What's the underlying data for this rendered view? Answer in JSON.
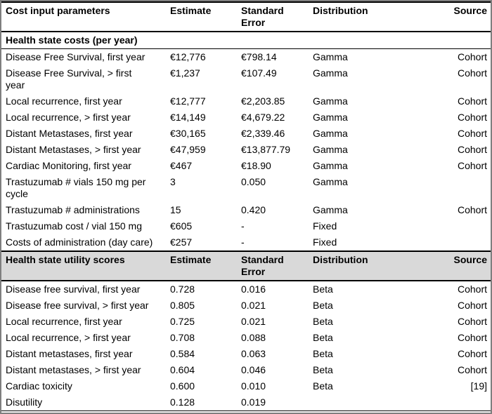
{
  "colors": {
    "frame_border": "#7f7f7f",
    "rule_color": "#000000",
    "header_shade": "#d9d9d9",
    "text": "#000000",
    "background": "#ffffff"
  },
  "table": {
    "sections": [
      {
        "type": "header",
        "shaded": false,
        "cells": [
          "Cost input parameters",
          "Estimate",
          "Standard\nError",
          "Distribution",
          "Source"
        ]
      },
      {
        "type": "subheader",
        "label": "Health state costs (per year)"
      },
      {
        "type": "rows",
        "rows": [
          [
            "Disease Free Survival, first year",
            "€12,776",
            "€798.14",
            "Gamma",
            "Cohort"
          ],
          [
            "Disease Free Survival, > first\nyear",
            "€1,237",
            "€107.49",
            "Gamma",
            "Cohort"
          ],
          [
            "Local recurrence, first year",
            "€12,777",
            "€2,203.85",
            "Gamma",
            "Cohort"
          ],
          [
            "Local recurrence, > first year",
            "€14,149",
            "€4,679.22",
            "Gamma",
            "Cohort"
          ],
          [
            "Distant Metastases, first year",
            "€30,165",
            "€2,339.46",
            "Gamma",
            "Cohort"
          ],
          [
            "Distant Metastases, > first year",
            "€47,959",
            "€13,877.79",
            "Gamma",
            "Cohort"
          ],
          [
            "Cardiac Monitoring, first year",
            "€467",
            "€18.90",
            "Gamma",
            "Cohort"
          ],
          [
            "Trastuzumab # vials 150 mg per\ncycle",
            "3",
            "0.050",
            "Gamma",
            ""
          ],
          [
            "Trastuzumab # administrations",
            "15",
            "0.420",
            "Gamma",
            "Cohort"
          ],
          [
            "Trastuzumab cost / vial 150 mg",
            "€605",
            "-",
            "Fixed",
            ""
          ],
          [
            "Costs of administration (day care)",
            "€257",
            "-",
            "Fixed",
            ""
          ]
        ]
      },
      {
        "type": "header",
        "shaded": true,
        "cells": [
          "Health state utility scores",
          "Estimate",
          "Standard\nError",
          "Distribution",
          "Source"
        ]
      },
      {
        "type": "rows",
        "rows": [
          [
            "Disease free survival, first year",
            "0.728",
            "0.016",
            "Beta",
            "Cohort"
          ],
          [
            "Disease free survival, > first year",
            "0.805",
            "0.021",
            "Beta",
            "Cohort"
          ],
          [
            "Local recurrence, first year",
            "0.725",
            "0.021",
            "Beta",
            "Cohort"
          ],
          [
            "Local recurrence, > first year",
            "0.708",
            "0.088",
            "Beta",
            "Cohort"
          ],
          [
            "Distant metastases, first year",
            "0.584",
            "0.063",
            "Beta",
            "Cohort"
          ],
          [
            "Distant metastases, > first year",
            "0.604",
            "0.046",
            "Beta",
            "Cohort"
          ],
          [
            "Cardiac toxicity",
            "0.600",
            "0.010",
            "Beta",
            "[19]"
          ],
          [
            "Disutility",
            "0.128",
            "0.019",
            "",
            ""
          ]
        ]
      }
    ]
  }
}
